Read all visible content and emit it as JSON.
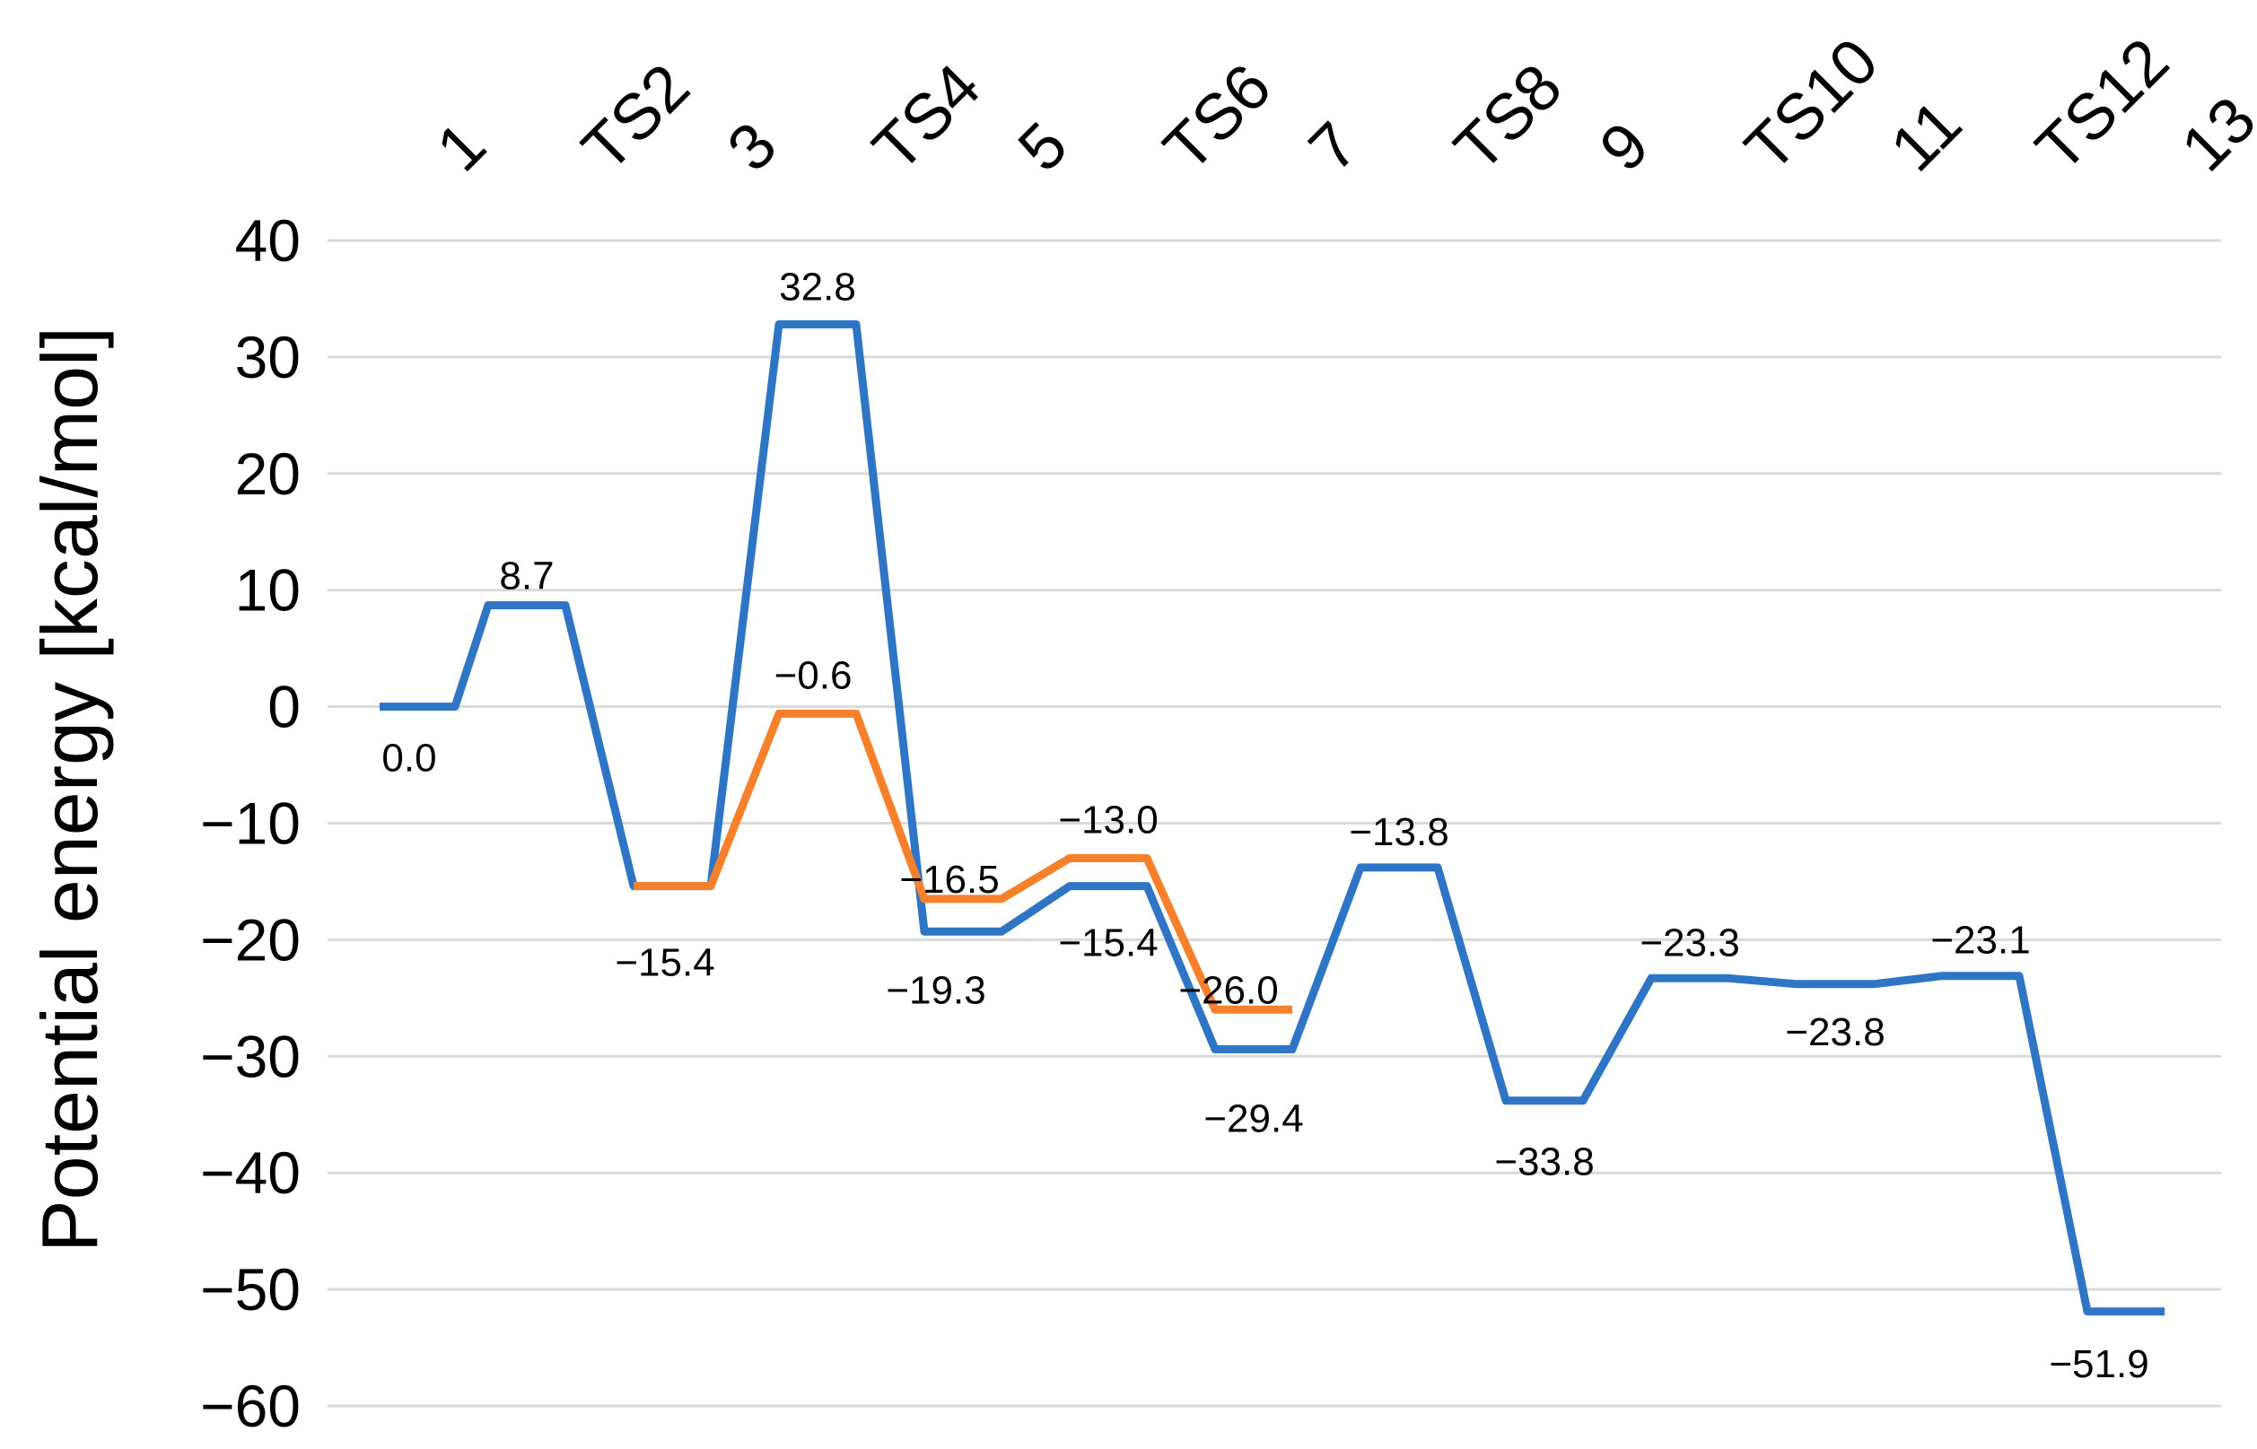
{
  "chart_data": {
    "type": "line",
    "ylabel": "Potential energy [kcal/mol]",
    "ylim": [
      -60,
      40
    ],
    "yticks": [
      40,
      30,
      20,
      10,
      0,
      -10,
      -20,
      -30,
      -40,
      -50,
      -60
    ],
    "ytick_labels": [
      "40",
      "30",
      "20",
      "10",
      "0",
      "−10",
      "−20",
      "−30",
      "−40",
      "−50",
      "−60"
    ],
    "grid": true,
    "legend": "none",
    "categories": [
      "1",
      "TS2",
      "3",
      "TS4",
      "5",
      "TS6",
      "7",
      "TS8",
      "9",
      "TS10",
      "11",
      "TS12",
      "13"
    ],
    "series": [
      {
        "color": "#2e75c5",
        "values": [
          0.0,
          8.7,
          -15.4,
          32.8,
          -19.3,
          -15.4,
          -29.4,
          -13.8,
          -33.8,
          -23.3,
          -23.8,
          -23.1,
          -51.9
        ],
        "labels": [
          "0.0",
          "8.7",
          "−15.4",
          "32.8",
          "−19.3",
          "−15.4",
          "−29.4",
          "−13.8",
          "−33.8",
          "−23.3",
          "−23.8",
          "−23.1",
          "−51.9"
        ]
      },
      {
        "color": "#f7812b",
        "values": [
          null,
          null,
          -15.4,
          -0.6,
          -16.5,
          -13.0,
          -26.0,
          null,
          null,
          null,
          null,
          null,
          null
        ],
        "labels": [
          null,
          null,
          null,
          "−0.6",
          "−16.5",
          "−13.0",
          "−26.0",
          null,
          null,
          null,
          null,
          null,
          null
        ]
      }
    ]
  }
}
